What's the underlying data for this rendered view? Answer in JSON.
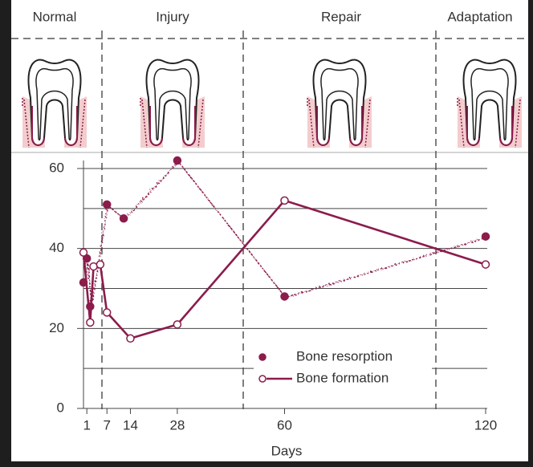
{
  "chart_data": {
    "type": "line",
    "stages": [
      "Normal",
      "Injury",
      "Repair",
      "Adaptation"
    ],
    "x_label": "Days",
    "xlim": [
      0,
      120
    ],
    "xticks": [
      1,
      7,
      14,
      28,
      60,
      120
    ],
    "ylim": [
      0,
      60
    ],
    "yticks": [
      0,
      20,
      40,
      60
    ],
    "minor_yticks": [
      10,
      30,
      50
    ],
    "grid": true,
    "legend": "lower center",
    "series": [
      {
        "name": "Bone resorption",
        "color": "#8b1c4c",
        "marker": "filled",
        "style": "wavy",
        "x": [
          0,
          1,
          2,
          7,
          12,
          28,
          60,
          120
        ],
        "values": [
          31.5,
          37.5,
          25.5,
          51,
          47.5,
          62,
          28,
          43
        ]
      },
      {
        "name": "Bone formation",
        "color": "#8b1c4c",
        "marker": "open",
        "style": "solid",
        "x": [
          0,
          2,
          3,
          5,
          7,
          14,
          28,
          60,
          120
        ],
        "values": [
          39,
          21.5,
          35.5,
          36,
          24,
          17.5,
          21,
          52,
          36
        ]
      }
    ]
  }
}
